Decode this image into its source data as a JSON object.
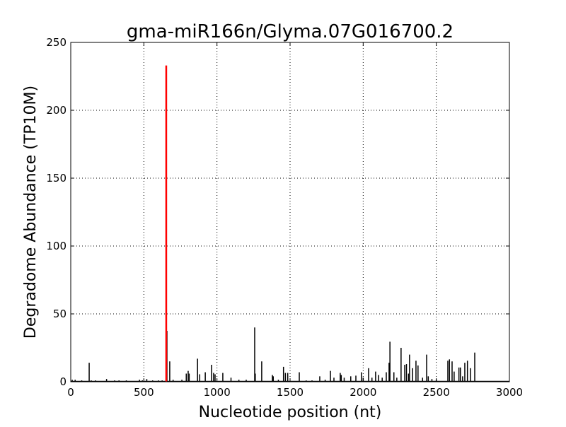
{
  "chart_data": {
    "type": "bar",
    "title": "gma-miR166n/Glyma.07G016700.2",
    "xlabel": "Nucleotide position (nt)",
    "ylabel": "Degradome Abundance (TP10M)",
    "xlim": [
      0,
      3000
    ],
    "ylim": [
      0,
      250
    ],
    "xticks": [
      "0",
      "500",
      "1000",
      "1500",
      "2000",
      "2500",
      "3000"
    ],
    "yticks": [
      "0",
      "50",
      "100",
      "150",
      "200",
      "250"
    ],
    "grid": true,
    "colors": {
      "background": "#4b4b4b",
      "highlight": "#ff0000"
    },
    "series": [
      {
        "color": "#000000",
        "x": [
          10,
          30,
          75,
          126,
          140,
          170,
          245,
          300,
          330,
          380,
          470,
          490,
          520,
          560,
          600,
          625,
          658,
          677,
          700,
          760,
          790,
          803,
          810,
          867,
          882,
          920,
          963,
          977,
          987,
          1040,
          1096,
          1150,
          1200,
          1258,
          1262,
          1306,
          1379,
          1385,
          1420,
          1455,
          1468,
          1484,
          1563,
          1610,
          1650,
          1703,
          1740,
          1776,
          1800,
          1843,
          1850,
          1870,
          1915,
          1950,
          1988,
          2000,
          2037,
          2060,
          2085,
          2105,
          2130,
          2158,
          2177,
          2183,
          2210,
          2230,
          2259,
          2284,
          2296,
          2310,
          2317,
          2338,
          2361,
          2375,
          2406,
          2434,
          2445,
          2470,
          2500,
          2579,
          2590,
          2608,
          2622,
          2655,
          2665,
          2680,
          2695,
          2713,
          2734,
          2763
        ],
        "values": [
          1.5,
          1.5,
          1,
          14,
          1,
          1,
          2,
          1,
          1,
          1,
          1.5,
          1,
          2,
          1,
          1,
          1,
          37.5,
          15,
          1.5,
          1.5,
          6,
          8,
          6,
          17,
          5.5,
          7,
          12.5,
          6.5,
          5.5,
          6.5,
          3,
          1.5,
          1.5,
          40,
          6,
          15,
          5,
          4,
          1.5,
          11,
          6.5,
          6.5,
          7,
          1,
          1,
          4,
          1.5,
          8,
          3,
          6.5,
          5,
          3,
          4,
          4.5,
          7,
          3,
          10,
          3,
          7.5,
          5,
          3,
          7,
          14,
          29.5,
          7,
          3,
          25,
          12.5,
          13,
          6,
          20,
          10,
          15.5,
          12,
          3,
          20,
          4,
          2,
          1.5,
          15.5,
          16.5,
          15,
          7.5,
          10.5,
          10.5,
          4,
          14,
          15.5,
          10,
          21.5
        ]
      },
      {
        "color": "#ff0000",
        "x": [
          653
        ],
        "values": [
          233
        ]
      }
    ]
  }
}
